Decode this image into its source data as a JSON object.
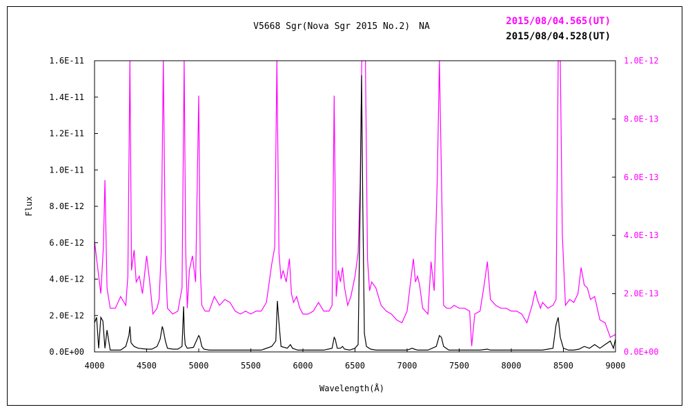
{
  "chart_data": {
    "type": "line",
    "title": "V5668 Sgr(Nova Sgr 2015 No.2)　NA",
    "xlabel": "Wavelength(Å)",
    "ylabel": "Flux",
    "xlim": [
      4000,
      9000
    ],
    "ylim_left": [
      0,
      1.6e-11
    ],
    "ylim_right": [
      0,
      1e-12
    ],
    "x_ticks": [
      "4000",
      "4500",
      "5000",
      "5500",
      "6000",
      "6500",
      "7000",
      "7500",
      "8000",
      "8500",
      "9000"
    ],
    "y_ticks_left": [
      "0.0E+00",
      "2.0E-12",
      "4.0E-12",
      "6.0E-12",
      "8.0E-12",
      "1.0E-11",
      "1.2E-11",
      "1.4E-11",
      "1.6E-11"
    ],
    "y_ticks_right": [
      "0.0E+00",
      "2.0E-13",
      "4.0E-13",
      "6.0E-13",
      "8.0E-13",
      "1.0E-12"
    ],
    "series": [
      {
        "name": "2015/08/04.565(UT)",
        "color": "#ff00ff",
        "axis": "right",
        "x": [
          4000,
          4030,
          4060,
          4085,
          4100,
          4120,
          4150,
          4200,
          4250,
          4300,
          4320,
          4340,
          4355,
          4380,
          4400,
          4430,
          4460,
          4500,
          4530,
          4560,
          4600,
          4620,
          4640,
          4660,
          4680,
          4700,
          4750,
          4800,
          4840,
          4860,
          4875,
          4890,
          4910,
          4940,
          4970,
          5000,
          5015,
          5030,
          5060,
          5100,
          5150,
          5200,
          5250,
          5300,
          5350,
          5400,
          5450,
          5500,
          5550,
          5600,
          5650,
          5700,
          5730,
          5750,
          5770,
          5790,
          5810,
          5840,
          5870,
          5890,
          5910,
          5940,
          5970,
          6000,
          6050,
          6100,
          6150,
          6200,
          6250,
          6280,
          6300,
          6320,
          6340,
          6360,
          6380,
          6400,
          6430,
          6460,
          6500,
          6530,
          6550,
          6565,
          6580,
          6600,
          6620,
          6640,
          6660,
          6700,
          6750,
          6800,
          6850,
          6900,
          6950,
          7000,
          7030,
          7060,
          7080,
          7100,
          7120,
          7150,
          7200,
          7230,
          7260,
          7290,
          7310,
          7330,
          7350,
          7380,
          7420,
          7450,
          7500,
          7550,
          7600,
          7620,
          7650,
          7700,
          7740,
          7770,
          7800,
          7850,
          7900,
          7950,
          8000,
          8050,
          8100,
          8150,
          8200,
          8230,
          8250,
          8280,
          8300,
          8350,
          8400,
          8430,
          8450,
          8470,
          8490,
          8520,
          8560,
          8600,
          8640,
          8670,
          8700,
          8730,
          8760,
          8800,
          8850,
          8900,
          8950,
          9000
        ],
        "y": [
          3.8e-13,
          2.9e-13,
          2e-13,
          3.6e-13,
          5.9e-13,
          2.2e-13,
          1.5e-13,
          1.5e-13,
          1.9e-13,
          1.6e-13,
          2.6e-13,
          1e-12,
          2.8e-13,
          3.5e-13,
          2.4e-13,
          2.6e-13,
          2e-13,
          3.3e-13,
          2.4e-13,
          1.3e-13,
          1.5e-13,
          1.8e-13,
          3.4e-13,
          1e-12,
          3.2e-13,
          1.5e-13,
          1.3e-13,
          1.4e-13,
          2.2e-13,
          1e-12,
          3.5e-13,
          1.5e-13,
          2.8e-13,
          3.3e-13,
          2.4e-13,
          8.8e-13,
          2.8e-13,
          1.6e-13,
          1.4e-13,
          1.4e-13,
          1.9e-13,
          1.6e-13,
          1.8e-13,
          1.7e-13,
          1.4e-13,
          1.3e-13,
          1.4e-13,
          1.3e-13,
          1.4e-13,
          1.4e-13,
          1.7e-13,
          3e-13,
          3.6e-13,
          1e-12,
          3.4e-13,
          2.5e-13,
          2.8e-13,
          2.4e-13,
          3.2e-13,
          2e-13,
          1.7e-13,
          1.9e-13,
          1.5e-13,
          1.3e-13,
          1.3e-13,
          1.4e-13,
          1.7e-13,
          1.4e-13,
          1.4e-13,
          1.6e-13,
          8.8e-13,
          1.9e-13,
          2.8e-13,
          2.4e-13,
          2.9e-13,
          2.2e-13,
          1.6e-13,
          1.9e-13,
          2.6e-13,
          3.4e-13,
          5.8e-13,
          1e-12,
          1e-12,
          1e-12,
          3.2e-13,
          2.1e-13,
          2.4e-13,
          2.2e-13,
          1.6e-13,
          1.4e-13,
          1.3e-13,
          1.1e-13,
          1e-13,
          1.4e-13,
          2.3e-13,
          3.2e-13,
          2.4e-13,
          2.6e-13,
          2.3e-13,
          1.5e-13,
          1.3e-13,
          3.1e-13,
          2.1e-13,
          6e-13,
          1e-12,
          6e-13,
          1.6e-13,
          1.5e-13,
          1.5e-13,
          1.6e-13,
          1.5e-13,
          1.5e-13,
          1.4e-13,
          2e-14,
          1.3e-13,
          1.4e-13,
          2.3e-13,
          3.1e-13,
          1.8e-13,
          1.6e-13,
          1.5e-13,
          1.5e-13,
          1.4e-13,
          1.4e-13,
          1.3e-13,
          1e-13,
          1.6e-13,
          2.1e-13,
          1.8e-13,
          1.5e-13,
          1.7e-13,
          1.5e-13,
          1.6e-13,
          1.8e-13,
          1e-12,
          1e-12,
          4e-13,
          1.6e-13,
          1.8e-13,
          1.7e-13,
          2e-13,
          2.9e-13,
          2.3e-13,
          2.2e-13,
          1.8e-13,
          1.9e-13,
          1.1e-13,
          1e-13,
          5e-14,
          6e-14
        ]
      },
      {
        "name": "2015/08/04.528(UT)",
        "color": "#000000",
        "axis": "left",
        "x": [
          4000,
          4020,
          4040,
          4060,
          4080,
          4100,
          4120,
          4150,
          4200,
          4250,
          4300,
          4330,
          4340,
          4350,
          4380,
          4420,
          4500,
          4550,
          4600,
          4630,
          4650,
          4660,
          4680,
          4700,
          4750,
          4800,
          4840,
          4855,
          4862,
          4870,
          4890,
          4950,
          5000,
          5010,
          5030,
          5050,
          5100,
          5200,
          5300,
          5400,
          5500,
          5600,
          5700,
          5740,
          5755,
          5770,
          5790,
          5850,
          5880,
          5900,
          5950,
          6000,
          6100,
          6200,
          6280,
          6300,
          6310,
          6330,
          6360,
          6380,
          6400,
          6450,
          6500,
          6530,
          6550,
          6563,
          6575,
          6590,
          6610,
          6650,
          6700,
          6800,
          6900,
          7000,
          7050,
          7070,
          7100,
          7200,
          7280,
          7310,
          7330,
          7350,
          7400,
          7500,
          7600,
          7700,
          7770,
          7800,
          7900,
          8000,
          8100,
          8200,
          8300,
          8400,
          8430,
          8450,
          8470,
          8500,
          8550,
          8600,
          8650,
          8700,
          8750,
          8800,
          8850,
          8900,
          8950,
          8980,
          9000
        ],
        "y": [
          1.6e-12,
          1.9e-12,
          2e-13,
          1.9e-12,
          1.7e-12,
          2e-13,
          1.2e-12,
          1e-13,
          1e-13,
          1e-13,
          3e-13,
          9e-13,
          1.4e-12,
          5e-13,
          3e-13,
          2e-13,
          1.5e-13,
          1.5e-13,
          3e-13,
          7e-13,
          1.4e-12,
          1.2e-12,
          6e-13,
          2e-13,
          1.5e-13,
          1.5e-13,
          3e-13,
          2.5e-12,
          1e-12,
          4e-13,
          2e-13,
          2.5e-13,
          9e-13,
          8e-13,
          3e-13,
          1.5e-13,
          1e-13,
          1e-13,
          1e-13,
          1e-13,
          1e-13,
          1e-13,
          3e-13,
          6e-13,
          2.8e-12,
          1.6e-12,
          3e-13,
          2e-13,
          4e-13,
          2e-13,
          1e-13,
          1e-13,
          1e-13,
          1e-13,
          2e-13,
          8e-13,
          7e-13,
          2e-13,
          2e-13,
          3e-13,
          1.5e-13,
          1e-13,
          2e-13,
          4e-13,
          8.2e-12,
          1.52e-11,
          8e-12,
          1e-12,
          3e-13,
          1.5e-13,
          1e-13,
          1e-13,
          1e-13,
          1e-13,
          2e-13,
          1.5e-13,
          1e-13,
          1e-13,
          3e-13,
          9e-13,
          8e-13,
          3e-13,
          1e-13,
          1e-13,
          1e-13,
          1e-13,
          1.5e-13,
          1e-13,
          1e-13,
          1e-13,
          1e-13,
          1e-13,
          1e-13,
          2e-13,
          1.5e-12,
          1.9e-12,
          8e-13,
          2e-13,
          1e-13,
          1e-13,
          1.5e-13,
          3e-13,
          2e-13,
          4e-13,
          2e-13,
          4e-13,
          6e-13,
          2e-13,
          7e-13
        ]
      }
    ],
    "grid": false,
    "legend_position": "top-right"
  }
}
